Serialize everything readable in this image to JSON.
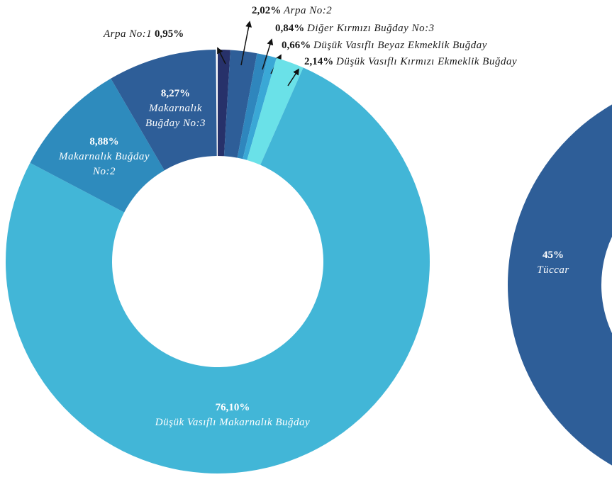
{
  "chart_data": [
    {
      "type": "donut",
      "categories": [
        "Arpa No:1",
        "Arpa No:2",
        "Diğer Kırmızı Buğday No:3",
        "Düşük Vasıflı Beyaz Ekmeklik Buğday",
        "Düşük Vasıflı Kırmızı Ekmeklik Buğday",
        "Düşük Vasıflı Makarnalık Buğday",
        "Makarnalık Buğday No:2",
        "Makarnalık Buğday No:3"
      ],
      "values": [
        0.95,
        2.02,
        0.84,
        0.66,
        2.14,
        76.1,
        8.88,
        8.27
      ],
      "value_labels": [
        "0,95%",
        "2,02%",
        "0,84%",
        "0,66%",
        "2,14%",
        "76,10%",
        "8,88%",
        "8,27%"
      ],
      "colors": [
        "#27316a",
        "#2e5e98",
        "#2f86bd",
        "#3aa8d6",
        "#6ae1e8",
        "#42b6d7",
        "#2e8bbd",
        "#2e5e98"
      ]
    },
    {
      "type": "donut",
      "categories": [
        "Tüccar"
      ],
      "values": [
        45
      ],
      "value_labels": [
        "45%"
      ],
      "colors": [
        "#2e5e98"
      ]
    }
  ]
}
